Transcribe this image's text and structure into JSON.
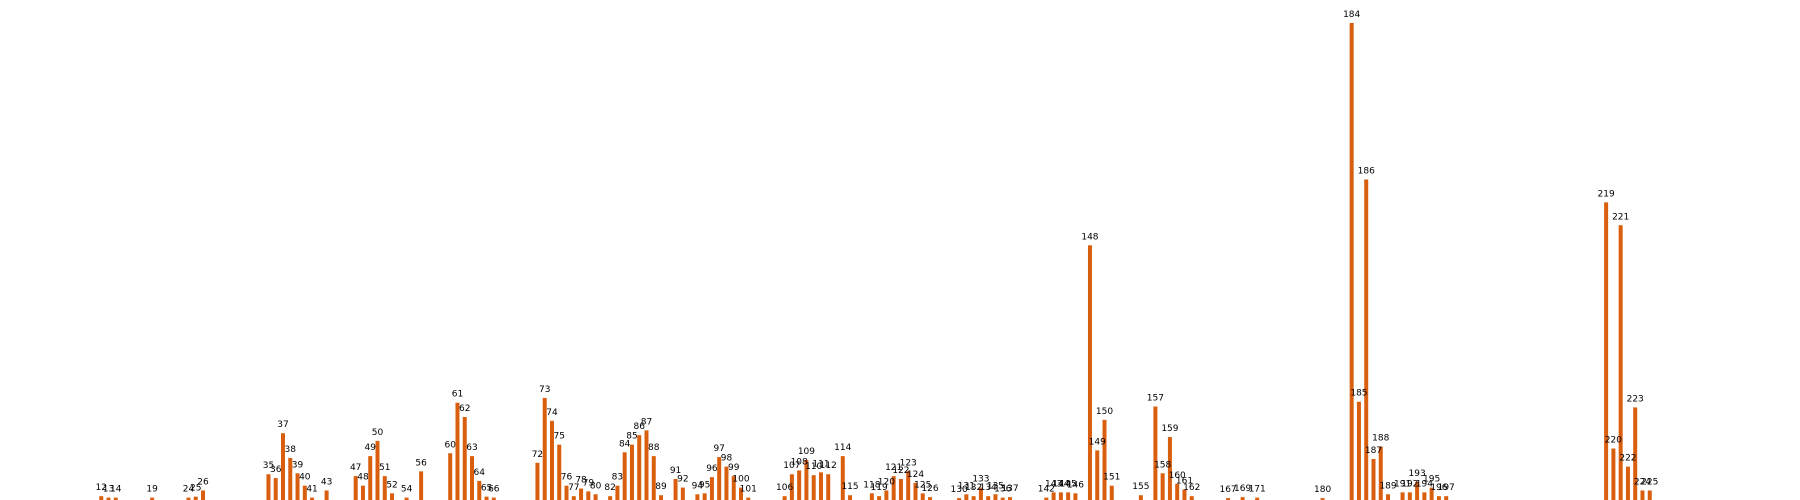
{
  "chart_data": {
    "type": "bar",
    "title": "",
    "xlabel": "",
    "ylabel": "",
    "x_range": [
      0,
      230
    ],
    "ylim": [
      0,
      100
    ],
    "bar_color": "#d95f0e",
    "grid": false,
    "axes_visible": false,
    "points": [
      {
        "x": 12,
        "value": 0.8
      },
      {
        "x": 13,
        "value": 0.5
      },
      {
        "x": 14,
        "value": 0.5
      },
      {
        "x": 19,
        "value": 0.5
      },
      {
        "x": 24,
        "value": 0.5
      },
      {
        "x": 25,
        "value": 0.7
      },
      {
        "x": 26,
        "value": 2.0
      },
      {
        "x": 35,
        "value": 5.4
      },
      {
        "x": 36,
        "value": 4.6
      },
      {
        "x": 37,
        "value": 14.0
      },
      {
        "x": 38,
        "value": 8.8
      },
      {
        "x": 39,
        "value": 5.6
      },
      {
        "x": 40,
        "value": 3.0
      },
      {
        "x": 41,
        "value": 0.5
      },
      {
        "x": 43,
        "value": 2.0
      },
      {
        "x": 47,
        "value": 5.0
      },
      {
        "x": 48,
        "value": 3.0
      },
      {
        "x": 49,
        "value": 9.2
      },
      {
        "x": 50,
        "value": 12.4
      },
      {
        "x": 51,
        "value": 5.0
      },
      {
        "x": 52,
        "value": 1.4
      },
      {
        "x": 54,
        "value": 0.5
      },
      {
        "x": 56,
        "value": 6.0
      },
      {
        "x": 60,
        "value": 9.8
      },
      {
        "x": 61,
        "value": 20.4
      },
      {
        "x": 62,
        "value": 17.4
      },
      {
        "x": 63,
        "value": 9.2
      },
      {
        "x": 64,
        "value": 4.0
      },
      {
        "x": 65,
        "value": 0.7
      },
      {
        "x": 66,
        "value": 0.5
      },
      {
        "x": 72,
        "value": 7.8
      },
      {
        "x": 73,
        "value": 21.4
      },
      {
        "x": 74,
        "value": 16.6
      },
      {
        "x": 75,
        "value": 11.6
      },
      {
        "x": 76,
        "value": 3.0
      },
      {
        "x": 77,
        "value": 0.8
      },
      {
        "x": 78,
        "value": 2.4
      },
      {
        "x": 79,
        "value": 1.8
      },
      {
        "x": 80,
        "value": 1.2
      },
      {
        "x": 82,
        "value": 0.8
      },
      {
        "x": 83,
        "value": 3.0
      },
      {
        "x": 84,
        "value": 10.0
      },
      {
        "x": 85,
        "value": 11.6
      },
      {
        "x": 86,
        "value": 13.6
      },
      {
        "x": 87,
        "value": 14.6
      },
      {
        "x": 88,
        "value": 9.2
      },
      {
        "x": 89,
        "value": 1.0
      },
      {
        "x": 91,
        "value": 4.4
      },
      {
        "x": 92,
        "value": 2.6
      },
      {
        "x": 94,
        "value": 1.2
      },
      {
        "x": 95,
        "value": 1.4
      },
      {
        "x": 96,
        "value": 4.8
      },
      {
        "x": 97,
        "value": 9.0
      },
      {
        "x": 98,
        "value": 7.0
      },
      {
        "x": 99,
        "value": 5.0
      },
      {
        "x": 100,
        "value": 2.6
      },
      {
        "x": 101,
        "value": 0.5
      },
      {
        "x": 106,
        "value": 0.8
      },
      {
        "x": 107,
        "value": 5.4
      },
      {
        "x": 108,
        "value": 6.2
      },
      {
        "x": 109,
        "value": 8.4
      },
      {
        "x": 110,
        "value": 5.2
      },
      {
        "x": 111,
        "value": 5.8
      },
      {
        "x": 112,
        "value": 5.4
      },
      {
        "x": 114,
        "value": 9.2
      },
      {
        "x": 115,
        "value": 1.0
      },
      {
        "x": 118,
        "value": 1.4
      },
      {
        "x": 119,
        "value": 0.8
      },
      {
        "x": 120,
        "value": 2.0
      },
      {
        "x": 121,
        "value": 5.0
      },
      {
        "x": 122,
        "value": 4.4
      },
      {
        "x": 123,
        "value": 6.0
      },
      {
        "x": 124,
        "value": 3.6
      },
      {
        "x": 125,
        "value": 1.4
      },
      {
        "x": 126,
        "value": 0.6
      },
      {
        "x": 130,
        "value": 0.4
      },
      {
        "x": 131,
        "value": 1.2
      },
      {
        "x": 132,
        "value": 0.8
      },
      {
        "x": 133,
        "value": 2.6
      },
      {
        "x": 134,
        "value": 0.8
      },
      {
        "x": 135,
        "value": 1.2
      },
      {
        "x": 136,
        "value": 0.5
      },
      {
        "x": 137,
        "value": 0.6
      },
      {
        "x": 142,
        "value": 0.5
      },
      {
        "x": 143,
        "value": 1.6
      },
      {
        "x": 144,
        "value": 1.6
      },
      {
        "x": 145,
        "value": 1.6
      },
      {
        "x": 146,
        "value": 1.4
      },
      {
        "x": 148,
        "value": 53.4
      },
      {
        "x": 149,
        "value": 10.4
      },
      {
        "x": 150,
        "value": 16.8
      },
      {
        "x": 151,
        "value": 3.0
      },
      {
        "x": 155,
        "value": 1.0
      },
      {
        "x": 157,
        "value": 19.6
      },
      {
        "x": 158,
        "value": 5.6
      },
      {
        "x": 159,
        "value": 13.2
      },
      {
        "x": 160,
        "value": 3.4
      },
      {
        "x": 161,
        "value": 2.2
      },
      {
        "x": 162,
        "value": 0.8
      },
      {
        "x": 167,
        "value": 0.4
      },
      {
        "x": 169,
        "value": 0.6
      },
      {
        "x": 171,
        "value": 0.5
      },
      {
        "x": 180,
        "value": 0.4
      },
      {
        "x": 184,
        "value": 100.0
      },
      {
        "x": 185,
        "value": 20.6
      },
      {
        "x": 186,
        "value": 67.2
      },
      {
        "x": 187,
        "value": 8.6
      },
      {
        "x": 188,
        "value": 11.2
      },
      {
        "x": 189,
        "value": 1.2
      },
      {
        "x": 191,
        "value": 1.6
      },
      {
        "x": 192,
        "value": 1.6
      },
      {
        "x": 193,
        "value": 3.8
      },
      {
        "x": 194,
        "value": 1.6
      },
      {
        "x": 195,
        "value": 2.6
      },
      {
        "x": 196,
        "value": 0.8
      },
      {
        "x": 197,
        "value": 0.8
      },
      {
        "x": 219,
        "value": 62.4
      },
      {
        "x": 220,
        "value": 10.8
      },
      {
        "x": 221,
        "value": 57.6
      },
      {
        "x": 222,
        "value": 7.0
      },
      {
        "x": 223,
        "value": 19.4
      },
      {
        "x": 224,
        "value": 2.0
      },
      {
        "x": 225,
        "value": 2.0
      }
    ]
  }
}
